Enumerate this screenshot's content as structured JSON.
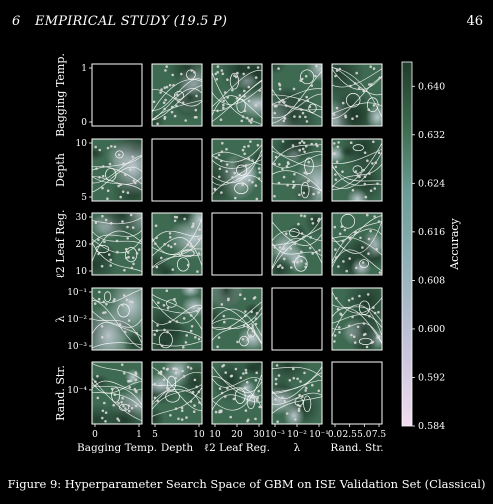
{
  "header": {
    "section_number": "6",
    "section_title": "EMPIRICAL STUDY (19.5 P)",
    "page_number": "46"
  },
  "caption": "Figure 9: Hyperparameter Search Space of GBM on ISE Validation Set (Classical)",
  "colors": {
    "background": "#000000",
    "low_accuracy": "#f2ddef",
    "mid_accuracy": "#6a9a93",
    "high_accuracy": "#1f3a2a",
    "contour_line": "#ffffff",
    "sample_point": "#d8d8d8"
  },
  "chart_data": {
    "type": "heatmap",
    "kind": "pairwise contour matrix",
    "parameters": [
      "Bagging Temp.",
      "Depth",
      "ℓ2 Leaf Reg.",
      "λ",
      "Rand. Str."
    ],
    "row_labels": [
      "Bagging Temp.",
      "Depth",
      "ℓ2 Leaf Reg.",
      "λ",
      "Rand. Str."
    ],
    "column_labels": [
      "Bagging Temp.",
      "Depth",
      "ℓ2 Leaf Reg.",
      "λ",
      "Rand. Str."
    ],
    "diagonal": "empty",
    "y_ticks": [
      [
        "0",
        "1"
      ],
      [
        "5",
        "10"
      ],
      [
        "10",
        "20",
        "30"
      ],
      [
        "10⁻³",
        "10⁻²",
        "10⁻¹"
      ],
      [
        "10⁻⁴"
      ]
    ],
    "x_ticks": [
      [
        "0",
        "1"
      ],
      [
        "5",
        "10"
      ],
      [
        "10",
        "20",
        "30"
      ],
      [
        "10⁻³",
        "10⁻²",
        "10⁻¹"
      ],
      [
        "0.0",
        "2.5",
        "5.0",
        "7.5"
      ]
    ],
    "colorbar": {
      "label": "Accuracy",
      "min": 0.584,
      "max": 0.644,
      "ticks": [
        "0.584",
        "0.592",
        "0.600",
        "0.608",
        "0.616",
        "0.624",
        "0.632",
        "0.640"
      ]
    }
  }
}
